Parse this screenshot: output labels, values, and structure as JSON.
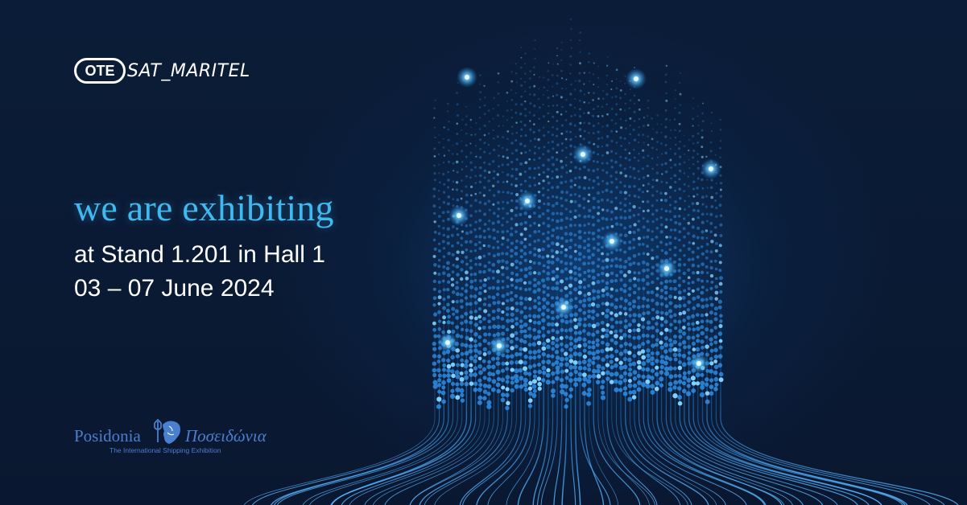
{
  "brand": {
    "ote_mark": "OTE",
    "sat_maritel": "SAT_MARITEL"
  },
  "headline": "we are exhibiting",
  "stand": "at Stand 1.201 in Hall 1",
  "dates": "03 – 07 June 2024",
  "posidonia": {
    "name_en": "Posidonia",
    "name_gr": "Ποσειδώνια",
    "tagline": "The International Shipping Exhibition",
    "emblem": "poseidon-trident-icon"
  },
  "colors": {
    "background": "#0a1a33",
    "headline": "#3fb9f0",
    "particles": "#2f8fe6",
    "posidonia": "#4a7fd0"
  }
}
